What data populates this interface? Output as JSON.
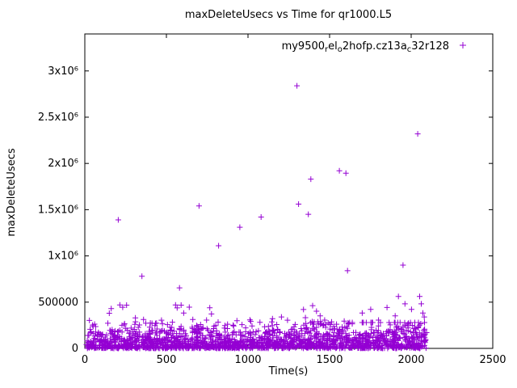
{
  "chart_data": {
    "type": "scatter",
    "title": "maxDeleteUsecs vs Time for qr1000.L5",
    "xlabel": "Time(s)",
    "ylabel": "maxDeleteUsecs",
    "xlim": [
      0,
      2500
    ],
    "ylim": [
      0,
      3400000
    ],
    "grid": false,
    "legend_position": "top-right-inside",
    "marker": "plus",
    "marker_color": "#9400d3",
    "xticks": [
      {
        "value": 0,
        "label": "0"
      },
      {
        "value": 500,
        "label": "500"
      },
      {
        "value": 1000,
        "label": "1000"
      },
      {
        "value": 1500,
        "label": "1500"
      },
      {
        "value": 2000,
        "label": "2000"
      },
      {
        "value": 2500,
        "label": "2500"
      }
    ],
    "yticks": [
      {
        "value": 0,
        "label": "0"
      },
      {
        "value": 500000,
        "label": "500000"
      },
      {
        "value": 1000000,
        "label": "1x10⁶"
      },
      {
        "value": 1500000,
        "label": "1.5x10⁶"
      },
      {
        "value": 2000000,
        "label": "2x10⁶"
      },
      {
        "value": 2500000,
        "label": "2.5x10⁶"
      },
      {
        "value": 3000000,
        "label": "3x10⁶"
      }
    ],
    "legend": {
      "series_name_plain": "my9500_rel_o2hofp.cz13a_c32r128",
      "segments": [
        {
          "text": "my9500",
          "sub": false
        },
        {
          "text": "r",
          "sub": true
        },
        {
          "text": "el",
          "sub": false
        },
        {
          "text": "o",
          "sub": true
        },
        {
          "text": "2hofp.cz13a",
          "sub": false
        },
        {
          "text": "c",
          "sub": true
        },
        {
          "text": "32r128",
          "sub": false
        }
      ]
    },
    "high_outliers": [
      [
        205,
        1390000
      ],
      [
        350,
        780000
      ],
      [
        580,
        655000
      ],
      [
        700,
        1540000
      ],
      [
        820,
        1110000
      ],
      [
        950,
        1310000
      ],
      [
        1080,
        1420000
      ],
      [
        1300,
        2840000
      ],
      [
        1310,
        1560000
      ],
      [
        1370,
        1450000
      ],
      [
        1385,
        1830000
      ],
      [
        1560,
        1920000
      ],
      [
        1600,
        1895000
      ],
      [
        1610,
        840000
      ],
      [
        1950,
        900000
      ],
      [
        2040,
        2320000
      ]
    ],
    "mid_outliers": [
      [
        28,
        302000
      ],
      [
        150,
        380000
      ],
      [
        162,
        430000
      ],
      [
        215,
        470000
      ],
      [
        232,
        445000
      ],
      [
        256,
        468000
      ],
      [
        310,
        330000
      ],
      [
        360,
        312000
      ],
      [
        470,
        305000
      ],
      [
        556,
        470000
      ],
      [
        566,
        438000
      ],
      [
        590,
        468000
      ],
      [
        606,
        382000
      ],
      [
        640,
        446000
      ],
      [
        662,
        312000
      ],
      [
        746,
        306000
      ],
      [
        766,
        440000
      ],
      [
        776,
        372000
      ],
      [
        932,
        300000
      ],
      [
        1012,
        308000
      ],
      [
        1150,
        322000
      ],
      [
        1205,
        340000
      ],
      [
        1242,
        305000
      ],
      [
        1340,
        420000
      ],
      [
        1352,
        332000
      ],
      [
        1396,
        462000
      ],
      [
        1420,
        402000
      ],
      [
        1442,
        352000
      ],
      [
        1470,
        306000
      ],
      [
        1700,
        382000
      ],
      [
        1752,
        422000
      ],
      [
        1800,
        306000
      ],
      [
        1852,
        442000
      ],
      [
        1902,
        352000
      ],
      [
        1922,
        562000
      ],
      [
        1962,
        482000
      ],
      [
        2002,
        422000
      ],
      [
        2052,
        562000
      ],
      [
        2062,
        482000
      ],
      [
        2072,
        382000
      ],
      [
        2080,
        340000
      ]
    ],
    "dense_band": {
      "seed": 42,
      "count": 1800,
      "x_min": 5,
      "x_max": 2095,
      "y_typical_max": 300000
    }
  }
}
